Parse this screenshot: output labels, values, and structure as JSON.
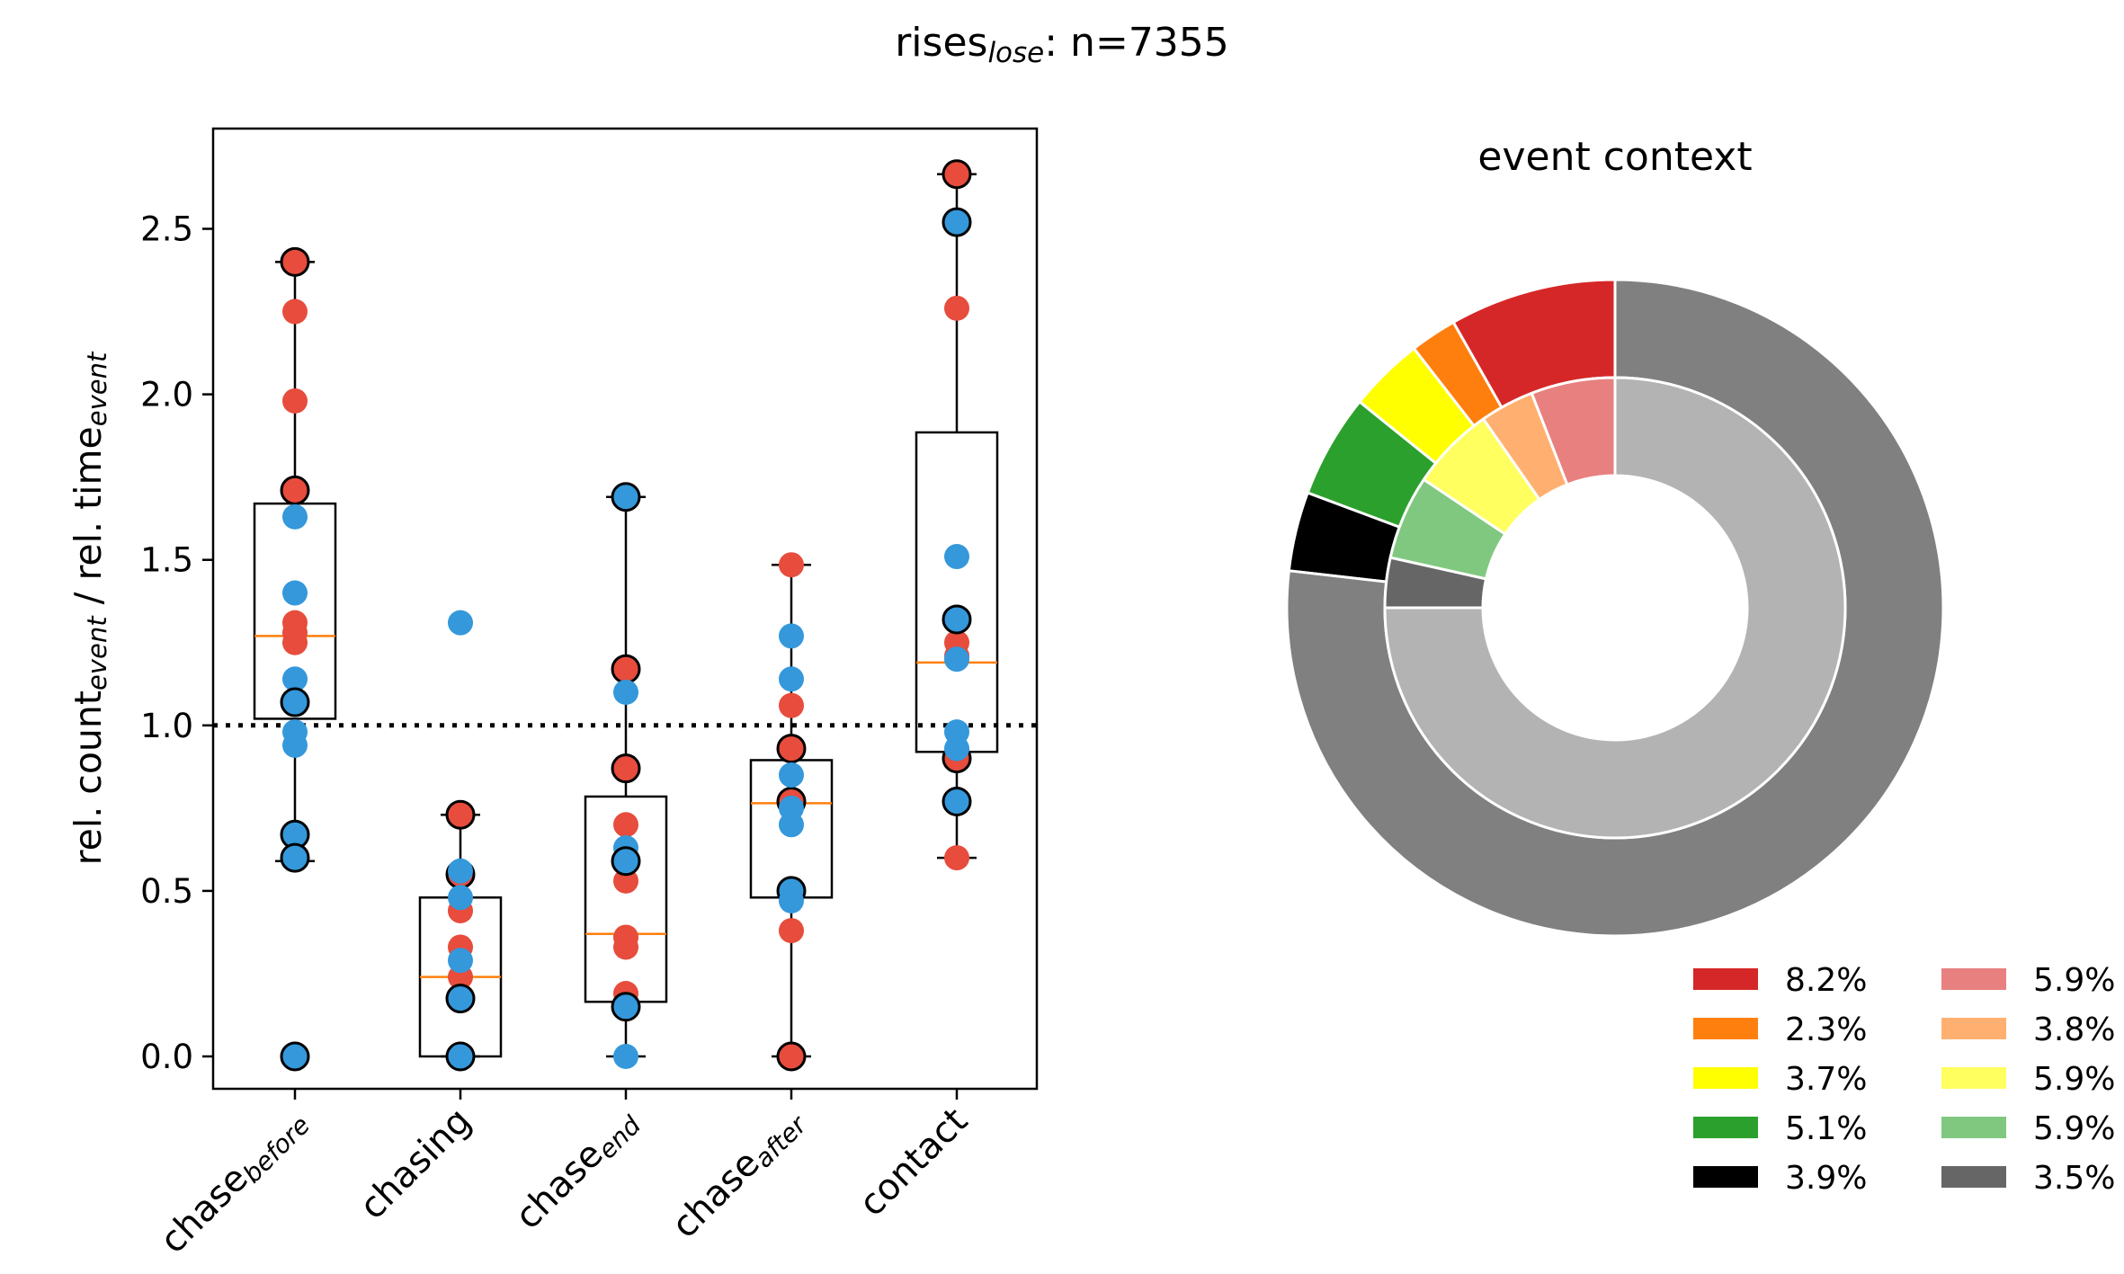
{
  "suptitle": {
    "base": "rises",
    "sub": "lose",
    "rest": ": n=7355"
  },
  "chart_data": [
    {
      "type": "box",
      "ylabel": {
        "p1": "rel. count",
        "s1": "event",
        "p2": " / rel. time",
        "s2": "event"
      },
      "ylim": [
        -0.1,
        2.8
      ],
      "yticks": [
        "0.0",
        "0.5",
        "1.0",
        "1.5",
        "2.0",
        "2.5"
      ],
      "ytick_values": [
        0,
        0.5,
        1,
        1.5,
        2,
        2.5
      ],
      "reference_line": 1.0,
      "categories": [
        {
          "base": "chase",
          "sub": "before"
        },
        {
          "base": "chasing",
          "sub": ""
        },
        {
          "base": "chase",
          "sub": "end"
        },
        {
          "base": "chase",
          "sub": "after"
        },
        {
          "base": "contact",
          "sub": ""
        }
      ],
      "boxes": [
        {
          "q1": 1.02,
          "median": 1.27,
          "q3": 1.67,
          "whisker_low": 0.59,
          "whisker_high": 2.4
        },
        {
          "q1": 0.0,
          "median": 0.24,
          "q3": 0.48,
          "whisker_low": 0.0,
          "whisker_high": 0.73
        },
        {
          "q1": 0.165,
          "median": 0.37,
          "q3": 0.785,
          "whisker_low": 0.0,
          "whisker_high": 1.69
        },
        {
          "q1": 0.48,
          "median": 0.765,
          "q3": 0.895,
          "whisker_low": 0.0,
          "whisker_high": 1.485
        },
        {
          "q1": 0.92,
          "median": 1.19,
          "q3": 1.885,
          "whisker_low": 0.6,
          "whisker_high": 2.665
        }
      ],
      "series": [
        {
          "color": "#e74c3c",
          "points": [
            [
              0,
              2.4,
              true
            ],
            [
              0,
              2.25,
              false
            ],
            [
              0,
              1.98,
              false
            ],
            [
              0,
              1.71,
              true
            ],
            [
              0,
              1.31,
              false
            ],
            [
              0,
              1.28,
              false
            ],
            [
              0,
              1.25,
              false
            ],
            [
              1,
              0.73,
              true
            ],
            [
              1,
              0.55,
              true
            ],
            [
              1,
              0.44,
              false
            ],
            [
              1,
              0.33,
              false
            ],
            [
              1,
              0.24,
              false
            ],
            [
              2,
              1.17,
              true
            ],
            [
              2,
              0.87,
              true
            ],
            [
              2,
              0.7,
              false
            ],
            [
              2,
              0.53,
              false
            ],
            [
              2,
              0.36,
              false
            ],
            [
              2,
              0.33,
              false
            ],
            [
              2,
              0.19,
              false
            ],
            [
              3,
              1.485,
              false
            ],
            [
              3,
              1.06,
              false
            ],
            [
              3,
              0.93,
              true
            ],
            [
              3,
              0.77,
              true
            ],
            [
              3,
              0.38,
              false
            ],
            [
              3,
              0.0,
              true
            ],
            [
              4,
              2.665,
              true
            ],
            [
              4,
              2.26,
              false
            ],
            [
              4,
              1.25,
              false
            ],
            [
              4,
              1.21,
              false
            ],
            [
              4,
              0.9,
              true
            ],
            [
              4,
              0.6,
              false
            ]
          ]
        },
        {
          "color": "#3498db",
          "points": [
            [
              0,
              1.63,
              false
            ],
            [
              0,
              1.4,
              false
            ],
            [
              0,
              1.14,
              false
            ],
            [
              0,
              1.07,
              true
            ],
            [
              0,
              0.98,
              false
            ],
            [
              0,
              0.94,
              false
            ],
            [
              0,
              0.67,
              true
            ],
            [
              0,
              0.6,
              true
            ],
            [
              0,
              0.0,
              true
            ],
            [
              1,
              1.31,
              false
            ],
            [
              1,
              0.56,
              false
            ],
            [
              1,
              0.48,
              false
            ],
            [
              1,
              0.29,
              false
            ],
            [
              1,
              0.175,
              true
            ],
            [
              1,
              0.0,
              true
            ],
            [
              2,
              1.69,
              true
            ],
            [
              2,
              1.1,
              false
            ],
            [
              2,
              0.63,
              false
            ],
            [
              2,
              0.59,
              true
            ],
            [
              2,
              0.15,
              true
            ],
            [
              2,
              0.0,
              false
            ],
            [
              3,
              1.27,
              false
            ],
            [
              3,
              1.14,
              false
            ],
            [
              3,
              0.85,
              false
            ],
            [
              3,
              0.75,
              false
            ],
            [
              3,
              0.7,
              false
            ],
            [
              3,
              0.5,
              true
            ],
            [
              3,
              0.47,
              false
            ],
            [
              4,
              2.52,
              true
            ],
            [
              4,
              1.51,
              false
            ],
            [
              4,
              1.32,
              true
            ],
            [
              4,
              1.2,
              false
            ],
            [
              4,
              0.98,
              false
            ],
            [
              4,
              0.93,
              false
            ],
            [
              4,
              0.77,
              true
            ]
          ]
        }
      ]
    },
    {
      "type": "pie",
      "title": "event context",
      "outer_ring": [
        {
          "value": 8.2,
          "color": "#d62728"
        },
        {
          "value": 2.3,
          "color": "#ff7f0e"
        },
        {
          "value": 3.7,
          "color": "#ffff00"
        },
        {
          "value": 5.1,
          "color": "#2ca02c"
        },
        {
          "value": 3.9,
          "color": "#000000"
        },
        {
          "value": 76.8,
          "color": "#808080"
        }
      ],
      "inner_ring": [
        {
          "value": 5.9,
          "color": "#e88080"
        },
        {
          "value": 3.8,
          "color": "#ffb070"
        },
        {
          "value": 5.9,
          "color": "#ffff60"
        },
        {
          "value": 5.9,
          "color": "#80c880"
        },
        {
          "value": 3.5,
          "color": "#666666"
        },
        {
          "value": 75.0,
          "color": "#b3b3b3"
        }
      ],
      "legend": [
        {
          "label": "8.2%",
          "color": "#d62728"
        },
        {
          "label": "2.3%",
          "color": "#ff7f0e"
        },
        {
          "label": "3.7%",
          "color": "#ffff00"
        },
        {
          "label": "5.1%",
          "color": "#2ca02c"
        },
        {
          "label": "3.9%",
          "color": "#000000"
        },
        {
          "label": "5.9%",
          "color": "#e88080"
        },
        {
          "label": "3.8%",
          "color": "#ffb070"
        },
        {
          "label": "5.9%",
          "color": "#ffff60"
        },
        {
          "label": "5.9%",
          "color": "#80c880"
        },
        {
          "label": "3.5%",
          "color": "#666666"
        }
      ]
    }
  ]
}
